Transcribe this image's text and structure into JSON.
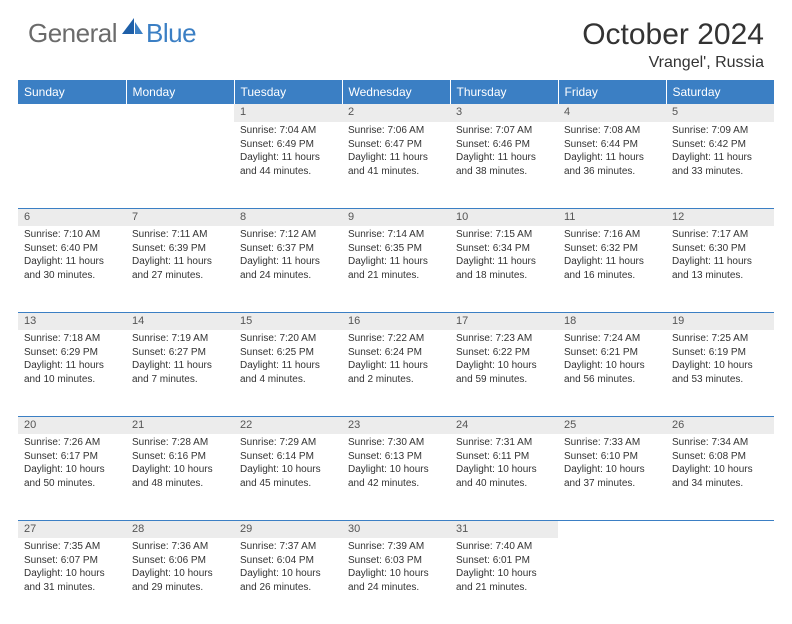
{
  "logo": {
    "general": "General",
    "blue": "Blue"
  },
  "title": "October 2024",
  "subtitle": "Vrangel', Russia",
  "colors": {
    "header_bg": "#3b7fc4",
    "header_text": "#ffffff",
    "daynum_bg": "#ececec",
    "border": "#3b7fc4",
    "logo_gray": "#6b6b6b",
    "logo_blue": "#3b7fc4"
  },
  "day_headers": [
    "Sunday",
    "Monday",
    "Tuesday",
    "Wednesday",
    "Thursday",
    "Friday",
    "Saturday"
  ],
  "weeks": [
    [
      {
        "num": "",
        "lines": []
      },
      {
        "num": "",
        "lines": []
      },
      {
        "num": "1",
        "lines": [
          "Sunrise: 7:04 AM",
          "Sunset: 6:49 PM",
          "Daylight: 11 hours and 44 minutes."
        ]
      },
      {
        "num": "2",
        "lines": [
          "Sunrise: 7:06 AM",
          "Sunset: 6:47 PM",
          "Daylight: 11 hours and 41 minutes."
        ]
      },
      {
        "num": "3",
        "lines": [
          "Sunrise: 7:07 AM",
          "Sunset: 6:46 PM",
          "Daylight: 11 hours and 38 minutes."
        ]
      },
      {
        "num": "4",
        "lines": [
          "Sunrise: 7:08 AM",
          "Sunset: 6:44 PM",
          "Daylight: 11 hours and 36 minutes."
        ]
      },
      {
        "num": "5",
        "lines": [
          "Sunrise: 7:09 AM",
          "Sunset: 6:42 PM",
          "Daylight: 11 hours and 33 minutes."
        ]
      }
    ],
    [
      {
        "num": "6",
        "lines": [
          "Sunrise: 7:10 AM",
          "Sunset: 6:40 PM",
          "Daylight: 11 hours and 30 minutes."
        ]
      },
      {
        "num": "7",
        "lines": [
          "Sunrise: 7:11 AM",
          "Sunset: 6:39 PM",
          "Daylight: 11 hours and 27 minutes."
        ]
      },
      {
        "num": "8",
        "lines": [
          "Sunrise: 7:12 AM",
          "Sunset: 6:37 PM",
          "Daylight: 11 hours and 24 minutes."
        ]
      },
      {
        "num": "9",
        "lines": [
          "Sunrise: 7:14 AM",
          "Sunset: 6:35 PM",
          "Daylight: 11 hours and 21 minutes."
        ]
      },
      {
        "num": "10",
        "lines": [
          "Sunrise: 7:15 AM",
          "Sunset: 6:34 PM",
          "Daylight: 11 hours and 18 minutes."
        ]
      },
      {
        "num": "11",
        "lines": [
          "Sunrise: 7:16 AM",
          "Sunset: 6:32 PM",
          "Daylight: 11 hours and 16 minutes."
        ]
      },
      {
        "num": "12",
        "lines": [
          "Sunrise: 7:17 AM",
          "Sunset: 6:30 PM",
          "Daylight: 11 hours and 13 minutes."
        ]
      }
    ],
    [
      {
        "num": "13",
        "lines": [
          "Sunrise: 7:18 AM",
          "Sunset: 6:29 PM",
          "Daylight: 11 hours and 10 minutes."
        ]
      },
      {
        "num": "14",
        "lines": [
          "Sunrise: 7:19 AM",
          "Sunset: 6:27 PM",
          "Daylight: 11 hours and 7 minutes."
        ]
      },
      {
        "num": "15",
        "lines": [
          "Sunrise: 7:20 AM",
          "Sunset: 6:25 PM",
          "Daylight: 11 hours and 4 minutes."
        ]
      },
      {
        "num": "16",
        "lines": [
          "Sunrise: 7:22 AM",
          "Sunset: 6:24 PM",
          "Daylight: 11 hours and 2 minutes."
        ]
      },
      {
        "num": "17",
        "lines": [
          "Sunrise: 7:23 AM",
          "Sunset: 6:22 PM",
          "Daylight: 10 hours and 59 minutes."
        ]
      },
      {
        "num": "18",
        "lines": [
          "Sunrise: 7:24 AM",
          "Sunset: 6:21 PM",
          "Daylight: 10 hours and 56 minutes."
        ]
      },
      {
        "num": "19",
        "lines": [
          "Sunrise: 7:25 AM",
          "Sunset: 6:19 PM",
          "Daylight: 10 hours and 53 minutes."
        ]
      }
    ],
    [
      {
        "num": "20",
        "lines": [
          "Sunrise: 7:26 AM",
          "Sunset: 6:17 PM",
          "Daylight: 10 hours and 50 minutes."
        ]
      },
      {
        "num": "21",
        "lines": [
          "Sunrise: 7:28 AM",
          "Sunset: 6:16 PM",
          "Daylight: 10 hours and 48 minutes."
        ]
      },
      {
        "num": "22",
        "lines": [
          "Sunrise: 7:29 AM",
          "Sunset: 6:14 PM",
          "Daylight: 10 hours and 45 minutes."
        ]
      },
      {
        "num": "23",
        "lines": [
          "Sunrise: 7:30 AM",
          "Sunset: 6:13 PM",
          "Daylight: 10 hours and 42 minutes."
        ]
      },
      {
        "num": "24",
        "lines": [
          "Sunrise: 7:31 AM",
          "Sunset: 6:11 PM",
          "Daylight: 10 hours and 40 minutes."
        ]
      },
      {
        "num": "25",
        "lines": [
          "Sunrise: 7:33 AM",
          "Sunset: 6:10 PM",
          "Daylight: 10 hours and 37 minutes."
        ]
      },
      {
        "num": "26",
        "lines": [
          "Sunrise: 7:34 AM",
          "Sunset: 6:08 PM",
          "Daylight: 10 hours and 34 minutes."
        ]
      }
    ],
    [
      {
        "num": "27",
        "lines": [
          "Sunrise: 7:35 AM",
          "Sunset: 6:07 PM",
          "Daylight: 10 hours and 31 minutes."
        ]
      },
      {
        "num": "28",
        "lines": [
          "Sunrise: 7:36 AM",
          "Sunset: 6:06 PM",
          "Daylight: 10 hours and 29 minutes."
        ]
      },
      {
        "num": "29",
        "lines": [
          "Sunrise: 7:37 AM",
          "Sunset: 6:04 PM",
          "Daylight: 10 hours and 26 minutes."
        ]
      },
      {
        "num": "30",
        "lines": [
          "Sunrise: 7:39 AM",
          "Sunset: 6:03 PM",
          "Daylight: 10 hours and 24 minutes."
        ]
      },
      {
        "num": "31",
        "lines": [
          "Sunrise: 7:40 AM",
          "Sunset: 6:01 PM",
          "Daylight: 10 hours and 21 minutes."
        ]
      },
      {
        "num": "",
        "lines": []
      },
      {
        "num": "",
        "lines": []
      }
    ]
  ]
}
